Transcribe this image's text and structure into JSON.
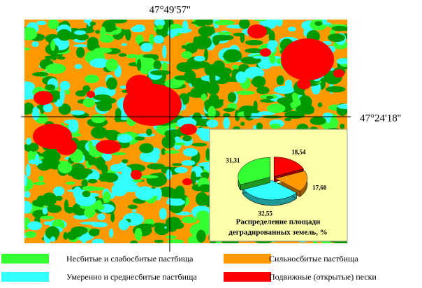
{
  "map": {
    "top_coordinate": "47°49'57''",
    "right_coordinate": "47°24'18''"
  },
  "chart_data": {
    "type": "pie",
    "title_lines": [
      "Распределение площади",
      "деградированных земель, %"
    ],
    "values": [
      18.54,
      17.6,
      32.55,
      31.31
    ],
    "value_labels": [
      "18,54",
      "17,60",
      "32,55",
      "31,31"
    ],
    "colors": [
      "#ff0000",
      "#ff9900",
      "#33ffff",
      "#33ff33"
    ]
  },
  "legend": [
    {
      "label": "Несбитые и слабосбитые пастбища",
      "color": "#33ff33"
    },
    {
      "label": "Сильносбитые пастбища",
      "color": "#ff9900"
    },
    {
      "label": "Умеренно и среднесбитые пастбища",
      "color": "#33ffff"
    },
    {
      "label": "Подвижные (открытые) пески",
      "color": "#ff0000"
    }
  ]
}
